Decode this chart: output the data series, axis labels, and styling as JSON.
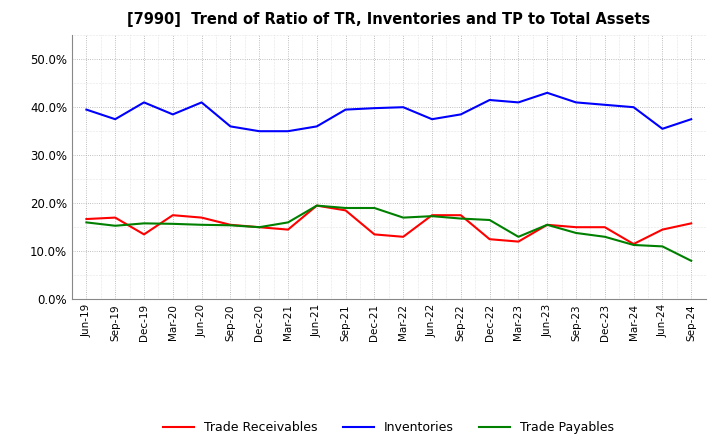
{
  "title": "[7990]  Trend of Ratio of TR, Inventories and TP to Total Assets",
  "x_labels": [
    "Jun-19",
    "Sep-19",
    "Dec-19",
    "Mar-20",
    "Jun-20",
    "Sep-20",
    "Dec-20",
    "Mar-21",
    "Jun-21",
    "Sep-21",
    "Dec-21",
    "Mar-22",
    "Jun-22",
    "Sep-22",
    "Dec-22",
    "Mar-23",
    "Jun-23",
    "Sep-23",
    "Dec-23",
    "Mar-24",
    "Jun-24",
    "Sep-24"
  ],
  "trade_receivables": [
    0.167,
    0.17,
    0.135,
    0.175,
    0.17,
    0.155,
    0.15,
    0.145,
    0.195,
    0.185,
    0.135,
    0.13,
    0.175,
    0.175,
    0.125,
    0.12,
    0.155,
    0.15,
    0.15,
    0.115,
    0.145,
    0.158
  ],
  "inventories": [
    0.395,
    0.375,
    0.41,
    0.385,
    0.41,
    0.36,
    0.35,
    0.35,
    0.36,
    0.395,
    0.398,
    0.4,
    0.375,
    0.385,
    0.415,
    0.41,
    0.43,
    0.41,
    0.405,
    0.4,
    0.355,
    0.375
  ],
  "trade_payables": [
    0.16,
    0.153,
    0.158,
    0.157,
    0.155,
    0.154,
    0.15,
    0.16,
    0.195,
    0.19,
    0.19,
    0.17,
    0.173,
    0.168,
    0.165,
    0.13,
    0.155,
    0.138,
    0.13,
    0.113,
    0.11,
    0.08
  ],
  "colors": {
    "trade_receivables": "#FF0000",
    "inventories": "#0000FF",
    "trade_payables": "#008000"
  },
  "ylim": [
    0.0,
    0.55
  ],
  "yticks": [
    0.0,
    0.1,
    0.2,
    0.3,
    0.4,
    0.5
  ],
  "background_color": "#FFFFFF",
  "legend_labels": [
    "Trade Receivables",
    "Inventories",
    "Trade Payables"
  ]
}
